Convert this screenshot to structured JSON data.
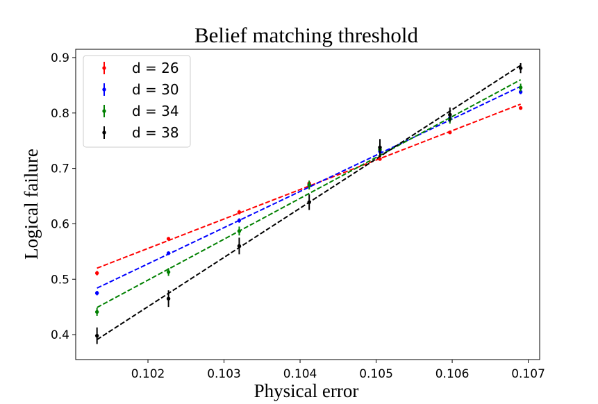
{
  "chart_data": {
    "type": "scatter",
    "title": "Belief matching threshold",
    "xlabel": "Physical error",
    "ylabel": "Logical failure",
    "xlim": [
      0.10105,
      0.10715
    ],
    "ylim": [
      0.355,
      0.915
    ],
    "xticks": [
      0.102,
      0.103,
      0.104,
      0.105,
      0.106,
      0.107
    ],
    "xtick_labels": [
      "0.102",
      "0.103",
      "0.104",
      "0.105",
      "0.106",
      "0.107"
    ],
    "yticks": [
      0.4,
      0.5,
      0.6,
      0.7,
      0.8,
      0.9
    ],
    "ytick_labels": [
      "0.4",
      "0.5",
      "0.6",
      "0.7",
      "0.8",
      "0.9"
    ],
    "grid": false,
    "legend_position": "top-left",
    "x": [
      0.10133,
      0.10227,
      0.1032,
      0.10412,
      0.10505,
      0.10597,
      0.1069
    ],
    "series": [
      {
        "name": "d = 26",
        "color": "#ff0000",
        "y": [
          0.511,
          0.573,
          0.621,
          0.673,
          0.717,
          0.765,
          0.809
        ],
        "err": [
          0.004,
          0.003,
          0.004,
          0.003,
          0.003,
          0.003,
          0.002
        ],
        "fit": [
          0.52,
          0.816
        ]
      },
      {
        "name": "d = 30",
        "color": "#0000ff",
        "y": [
          0.475,
          0.547,
          0.606,
          0.67,
          0.731,
          0.791,
          0.838
        ],
        "err": [
          0.004,
          0.003,
          0.004,
          0.004,
          0.005,
          0.005,
          0.004
        ],
        "fit": [
          0.484,
          0.848
        ]
      },
      {
        "name": "d = 34",
        "color": "#008000",
        "y": [
          0.441,
          0.513,
          0.587,
          0.67,
          0.734,
          0.789,
          0.846
        ],
        "err": [
          0.007,
          0.007,
          0.008,
          0.008,
          0.009,
          0.008,
          0.007
        ],
        "fit": [
          0.449,
          0.86
        ]
      },
      {
        "name": "d = 38",
        "color": "#000000",
        "y": [
          0.398,
          0.465,
          0.56,
          0.639,
          0.738,
          0.797,
          0.881
        ],
        "err": [
          0.015,
          0.015,
          0.015,
          0.014,
          0.015,
          0.013,
          0.009
        ],
        "fit": [
          0.391,
          0.886
        ]
      }
    ]
  }
}
